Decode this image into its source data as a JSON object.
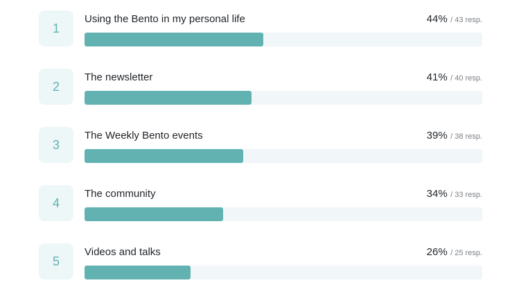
{
  "items": [
    {
      "rank": "1",
      "label": "Using the Bento in my personal life",
      "percent_label": "44%",
      "responses_label": "43 resp.",
      "percent": 44
    },
    {
      "rank": "2",
      "label": "The newsletter",
      "percent_label": "41%",
      "responses_label": "40 resp.",
      "percent": 41
    },
    {
      "rank": "3",
      "label": "The Weekly Bento events",
      "percent_label": "39%",
      "responses_label": "38 resp.",
      "percent": 39
    },
    {
      "rank": "4",
      "label": "The community",
      "percent_label": "34%",
      "responses_label": "33 resp.",
      "percent": 34
    },
    {
      "rank": "5",
      "label": "Videos and talks",
      "percent_label": "26%",
      "responses_label": "25 resp.",
      "percent": 26
    }
  ],
  "colors": {
    "accent": "#62b2b2",
    "track": "#f1f6f8",
    "badge_bg": "#eef7f8"
  }
}
